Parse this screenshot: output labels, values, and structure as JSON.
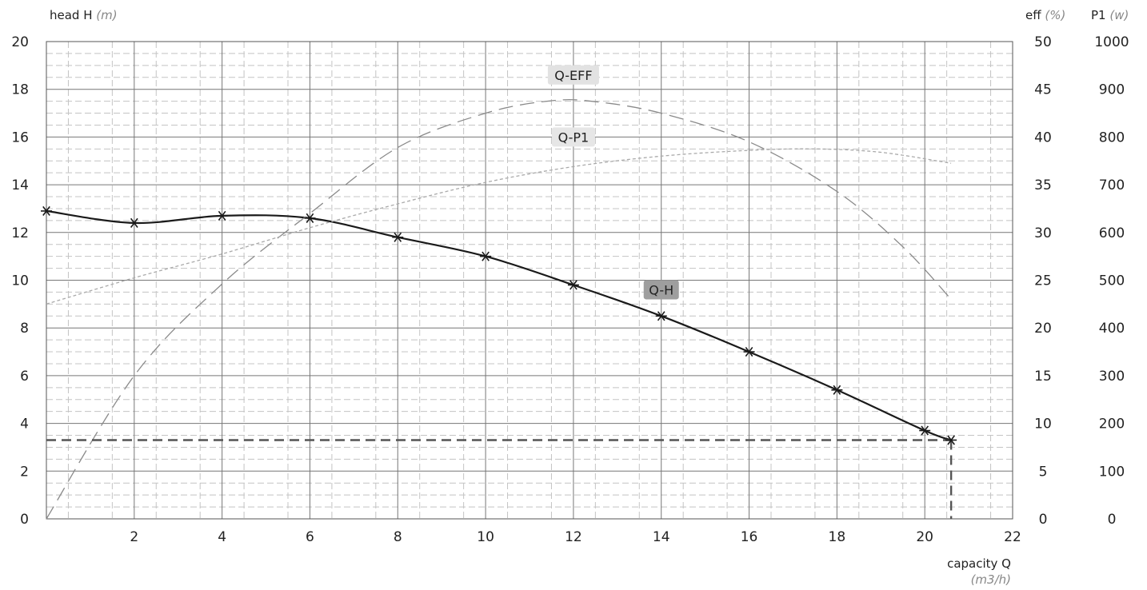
{
  "chart_data": {
    "type": "line",
    "x_axis": {
      "label": "capacity Q",
      "unit": "(m3/h)",
      "range": [
        0,
        22
      ],
      "ticks": [
        2,
        4,
        6,
        8,
        10,
        12,
        14,
        16,
        18,
        20,
        22
      ],
      "tick_labels": [
        "2",
        "4",
        "6",
        "8",
        "10",
        "12",
        "14",
        "16",
        "18",
        "20",
        "22"
      ]
    },
    "y_axes": {
      "head": {
        "label": "head H",
        "unit": "(m)",
        "range": [
          0,
          20
        ],
        "tick_labels": [
          "0",
          "2",
          "4",
          "6",
          "8",
          "10",
          "12",
          "14",
          "16",
          "18",
          "20"
        ]
      },
      "eff": {
        "label": "eff",
        "unit": "(%)",
        "range": [
          0,
          50
        ],
        "tick_labels": [
          "0",
          "5",
          "10",
          "15",
          "20",
          "25",
          "30",
          "35",
          "40",
          "45",
          "50"
        ]
      },
      "p1": {
        "label": "P1",
        "unit": "(w)",
        "range": [
          0,
          1000
        ],
        "tick_labels": [
          "0",
          "100",
          "200",
          "300",
          "400",
          "500",
          "600",
          "700",
          "800",
          "900",
          "1000"
        ]
      }
    },
    "grid": true,
    "series": [
      {
        "name": "Q-H",
        "axis": "head",
        "color": "#1a1a1a",
        "markers": "asterisk",
        "x": [
          0,
          2,
          4,
          6,
          8,
          10,
          12,
          14,
          16,
          18,
          20,
          20.6
        ],
        "y": [
          12.9,
          12.4,
          12.7,
          12.6,
          11.8,
          11.0,
          9.8,
          8.5,
          7.0,
          5.4,
          3.7,
          3.3
        ]
      },
      {
        "name": "Q-EFF",
        "axis": "eff",
        "color": "#8a8a8a",
        "x": [
          0,
          2,
          4,
          6,
          8,
          10,
          11.5,
          12.5,
          14,
          16,
          18,
          19.5,
          20.6
        ],
        "y": [
          0,
          15,
          24.6,
          32,
          38.9,
          42.5,
          43.8,
          43.7,
          42.5,
          39.5,
          34.3,
          28.5,
          23
        ]
      },
      {
        "name": "Q-P1",
        "axis": "p1",
        "color": "#aaaaaa",
        "x": [
          0,
          2,
          4,
          6,
          8,
          10,
          12,
          14,
          16,
          17.5,
          19,
          20.6
        ],
        "y": [
          450,
          505,
          555,
          610,
          660,
          705,
          738,
          760,
          772,
          775,
          768,
          745
        ]
      }
    ],
    "duty_point": {
      "x": 20.6,
      "y": 3.3,
      "axis": "head"
    },
    "labels": [
      {
        "series": "Q-EFF",
        "text": "Q-EFF",
        "x": 12,
        "y": 18.6,
        "axis": "head",
        "bg": "#e2e2e2"
      },
      {
        "series": "Q-P1",
        "text": "Q-P1",
        "x": 12,
        "y": 16.0,
        "axis": "head",
        "bg": "#e6e6e6"
      },
      {
        "series": "Q-H",
        "text": "Q-H",
        "x": 14,
        "y": 9.6,
        "axis": "head",
        "bg": "#9e9e9e"
      }
    ]
  }
}
